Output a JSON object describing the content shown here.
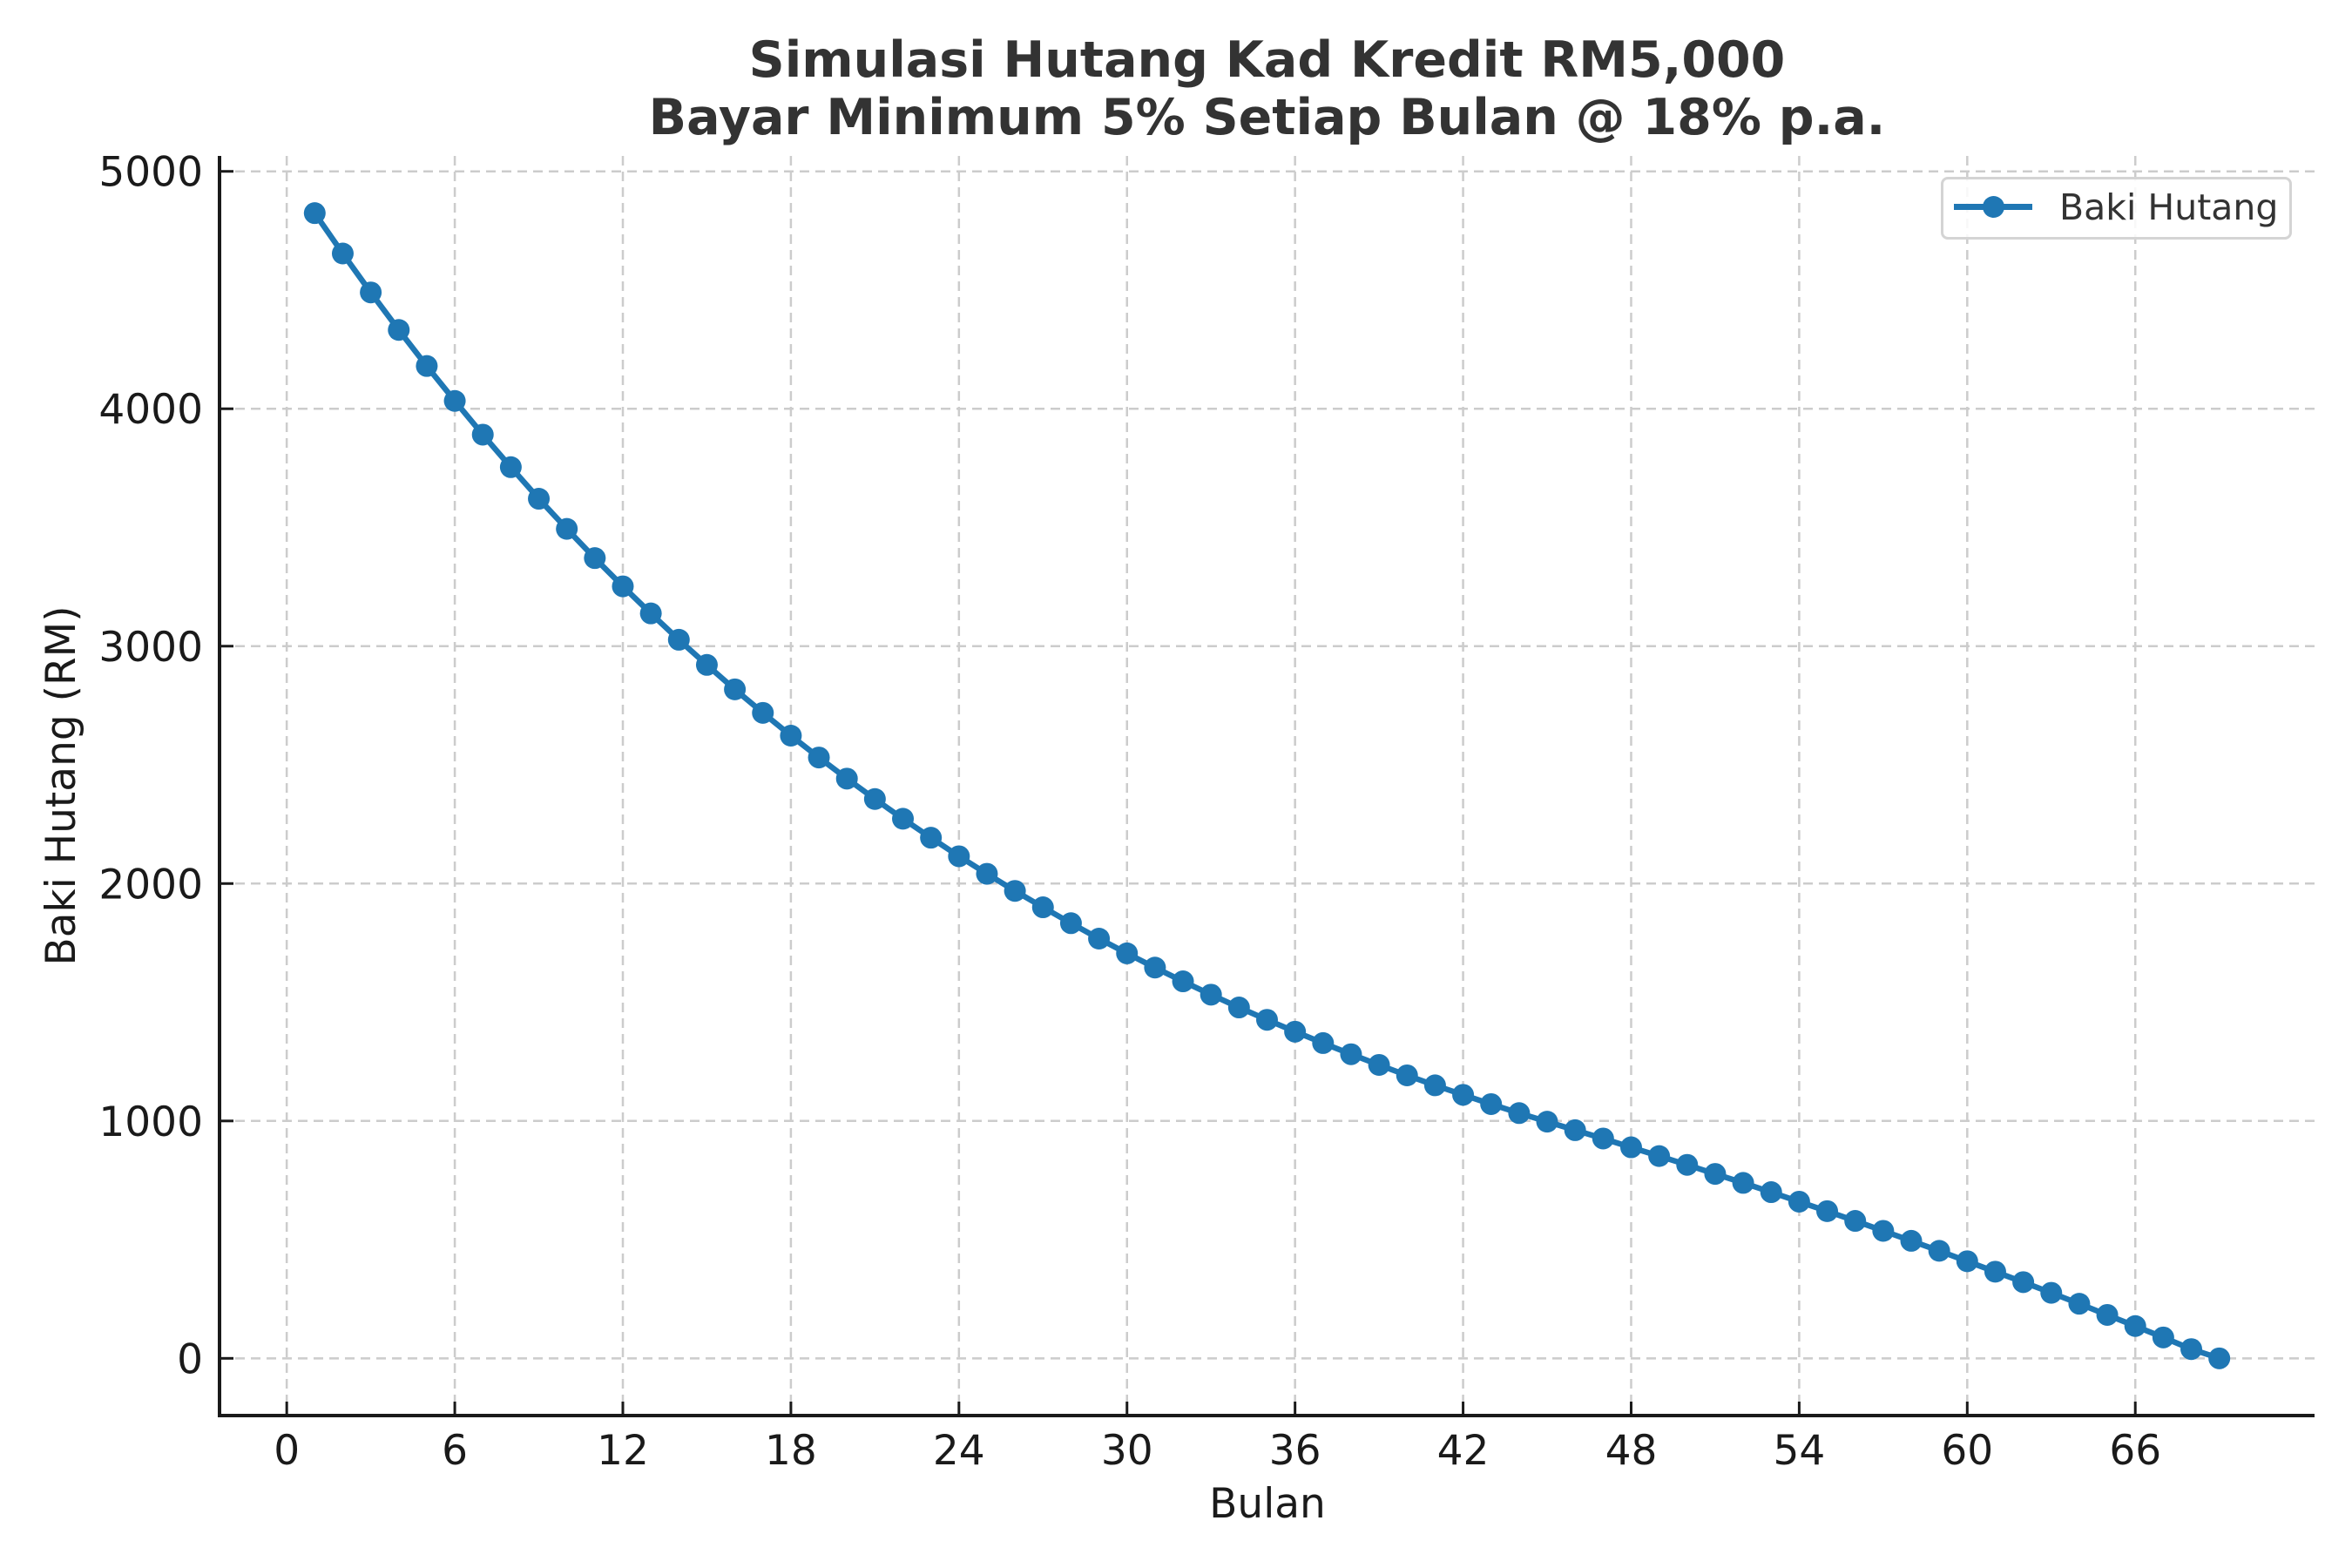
{
  "title": {
    "line1": "Simulasi Hutang Kad Kredit RM5,000",
    "line2": "Bayar Minimum 5% Setiap Bulan @ 18% p.a."
  },
  "legend": {
    "label": "Baki Hutang",
    "position": "upper right"
  },
  "colors": {
    "series": "#1f77b4",
    "grid": "#cccccc",
    "axis": "#1a1a1a",
    "title": "#333333",
    "legend_border": "#d4d4d4"
  },
  "chart_data": {
    "type": "line",
    "title": "Simulasi Hutang Kad Kredit RM5,000\nBayar Minimum 5% Setiap Bulan @ 18% p.a.",
    "xlabel": "Bulan",
    "ylabel": "Baki Hutang (RM)",
    "xlim": [
      -2.4,
      72.4
    ],
    "ylim": [
      -241,
      5065
    ],
    "xticks": [
      0,
      6,
      12,
      18,
      24,
      30,
      36,
      42,
      48,
      54,
      60,
      66
    ],
    "yticks": [
      0,
      1000,
      2000,
      3000,
      4000,
      5000
    ],
    "grid": true,
    "grid_style": "dashed",
    "legend_position": "upper right",
    "marker": "circle",
    "x": [
      1,
      2,
      3,
      4,
      5,
      6,
      7,
      8,
      9,
      10,
      11,
      12,
      13,
      14,
      15,
      16,
      17,
      18,
      19,
      20,
      21,
      22,
      23,
      24,
      25,
      26,
      27,
      28,
      29,
      30,
      31,
      32,
      33,
      34,
      35,
      36,
      37,
      38,
      39,
      40,
      41,
      42,
      43,
      44,
      45,
      46,
      47,
      48,
      49,
      50,
      51,
      52,
      53,
      54,
      55,
      56,
      57,
      58,
      59,
      60,
      61,
      62,
      63,
      64,
      65,
      66,
      67,
      68,
      69
    ],
    "series": [
      {
        "name": "Baki Hutang",
        "color": "#1f77b4",
        "values": [
          4824,
          4654,
          4490,
          4332,
          4180,
          4033,
          3891,
          3754,
          3621,
          3494,
          3371,
          3252,
          3138,
          3027,
          2921,
          2818,
          2719,
          2623,
          2531,
          2442,
          2356,
          2273,
          2193,
          2115,
          2041,
          1969,
          1900,
          1833,
          1768,
          1706,
          1646,
          1588,
          1532,
          1478,
          1426,
          1376,
          1328,
          1281,
          1236,
          1192,
          1150,
          1110,
          1071,
          1033,
          997,
          961,
          926,
          889,
          852,
          815,
          777,
          739,
          700,
          660,
          620,
          579,
          537,
          495,
          453,
          409,
          365,
          321,
          276,
          230,
          183,
          136,
          88,
          39,
          0
        ]
      }
    ]
  }
}
